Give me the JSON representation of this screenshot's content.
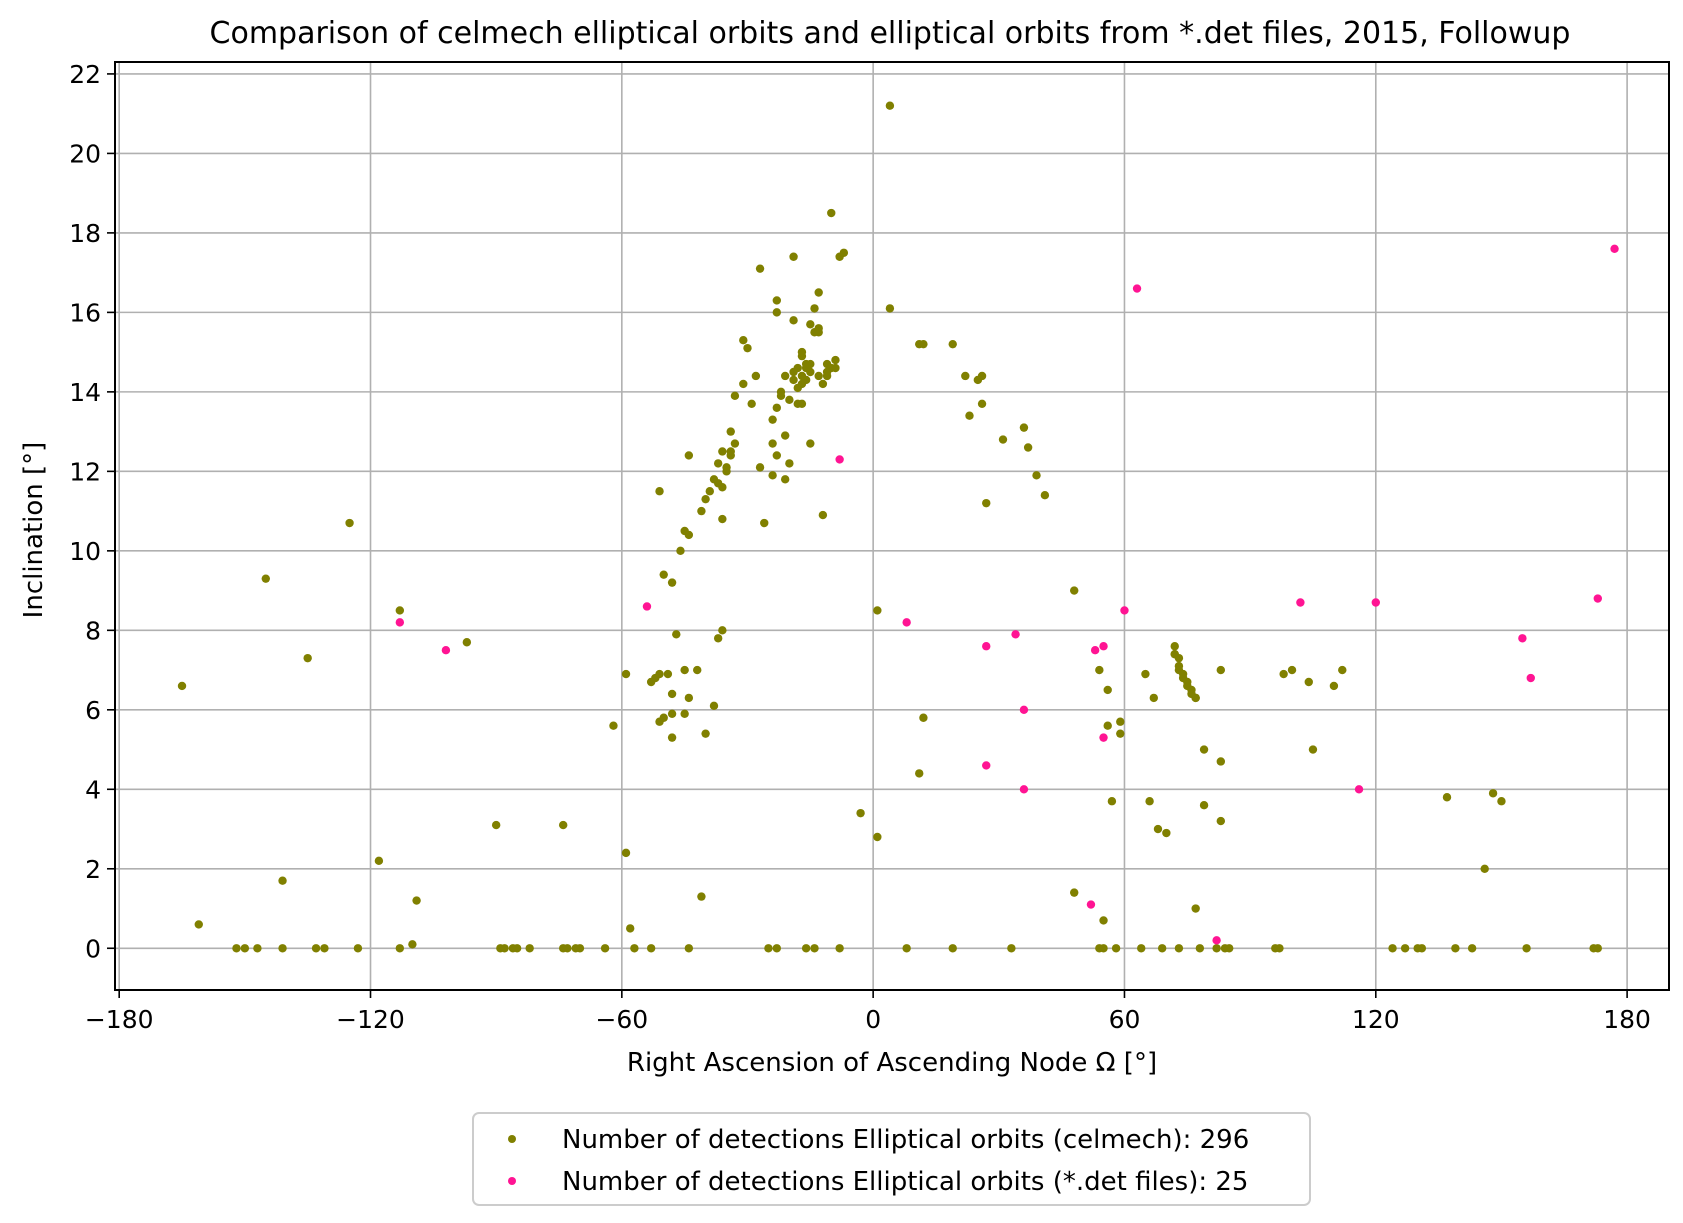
{
  "chart_data": {
    "type": "scatter",
    "title": "Comparison of celmech elliptical orbits and elliptical orbits from *.det files, 2015, Followup",
    "xlabel": "Right Ascension of Ascending Node Ω [°]",
    "ylabel": "Inclination [°]",
    "xlim": [
      -181,
      190
    ],
    "ylim": [
      -1.05,
      22.3
    ],
    "xticks": [
      -180,
      -120,
      -60,
      0,
      60,
      120,
      180
    ],
    "xtick_labels": [
      "−180",
      "−120",
      "−60",
      "0",
      "60",
      "120",
      "180"
    ],
    "yticks": [
      0,
      2,
      4,
      6,
      8,
      10,
      12,
      14,
      16,
      18,
      20,
      22
    ],
    "ytick_labels": [
      "0",
      "2",
      "4",
      "6",
      "8",
      "10",
      "12",
      "14",
      "16",
      "18",
      "20",
      "22"
    ],
    "grid": true,
    "legend_position": "below-center",
    "series": [
      {
        "name": "Number of detections Elliptical orbits (celmech): 296",
        "color": "#808000",
        "points": [
          [
            -165,
            6.6
          ],
          [
            -161,
            0.6
          ],
          [
            -152,
            0.0
          ],
          [
            -150,
            0.0
          ],
          [
            -147,
            0.0
          ],
          [
            -145,
            9.3
          ],
          [
            -141,
            1.7
          ],
          [
            -141,
            0.0
          ],
          [
            -135,
            7.3
          ],
          [
            -133,
            0.0
          ],
          [
            -131,
            0.0
          ],
          [
            -125,
            10.7
          ],
          [
            -123,
            0.0
          ],
          [
            -118,
            2.2
          ],
          [
            -113,
            8.5
          ],
          [
            -113,
            0.0
          ],
          [
            -110,
            0.1
          ],
          [
            -109,
            1.2
          ],
          [
            -97,
            7.7
          ],
          [
            -90,
            3.1
          ],
          [
            -89,
            0.0
          ],
          [
            -88,
            0.0
          ],
          [
            -86,
            0.0
          ],
          [
            -85,
            0.0
          ],
          [
            -82,
            0.0
          ],
          [
            -74,
            3.1
          ],
          [
            -74,
            0.0
          ],
          [
            -73,
            0.0
          ],
          [
            -71,
            0.0
          ],
          [
            -70,
            0.0
          ],
          [
            -64,
            0.0
          ],
          [
            -62,
            5.6
          ],
          [
            -59,
            6.9
          ],
          [
            -59,
            2.4
          ],
          [
            -58,
            0.5
          ],
          [
            -57,
            0.0
          ],
          [
            -53,
            0.0
          ],
          [
            -53,
            6.7
          ],
          [
            -52,
            6.8
          ],
          [
            -51,
            6.9
          ],
          [
            -51,
            5.7
          ],
          [
            -50,
            5.8
          ],
          [
            -49,
            6.9
          ],
          [
            -48,
            6.4
          ],
          [
            -48,
            5.9
          ],
          [
            -48,
            5.3
          ],
          [
            -47,
            7.9
          ],
          [
            -45,
            5.9
          ],
          [
            -45,
            7.0
          ],
          [
            -44,
            0.0
          ],
          [
            -44,
            6.3
          ],
          [
            -42,
            7.0
          ],
          [
            -41,
            1.3
          ],
          [
            -40,
            5.4
          ],
          [
            -38,
            6.1
          ],
          [
            -37,
            7.8
          ],
          [
            -36,
            8.0
          ],
          [
            -51,
            11.5
          ],
          [
            -50,
            9.4
          ],
          [
            -48,
            9.2
          ],
          [
            -46,
            10.0
          ],
          [
            -45,
            10.5
          ],
          [
            -44,
            10.4
          ],
          [
            -44,
            12.4
          ],
          [
            -41,
            11.0
          ],
          [
            -40,
            11.3
          ],
          [
            -39,
            11.5
          ],
          [
            -38,
            11.8
          ],
          [
            -37,
            11.7
          ],
          [
            -37,
            12.2
          ],
          [
            -36,
            12.5
          ],
          [
            -36,
            11.6
          ],
          [
            -36,
            10.8
          ],
          [
            -35,
            12.0
          ],
          [
            -35,
            12.1
          ],
          [
            -34,
            12.4
          ],
          [
            -34,
            12.5
          ],
          [
            -34,
            13.0
          ],
          [
            -33,
            12.7
          ],
          [
            -33,
            13.9
          ],
          [
            -31,
            14.2
          ],
          [
            -31,
            15.3
          ],
          [
            -30,
            15.1
          ],
          [
            -29,
            13.7
          ],
          [
            -28,
            14.4
          ],
          [
            -27,
            17.1
          ],
          [
            -27,
            12.1
          ],
          [
            -26,
            10.7
          ],
          [
            -24,
            11.9
          ],
          [
            -24,
            12.7
          ],
          [
            -24,
            13.3
          ],
          [
            -23,
            16.0
          ],
          [
            -23,
            12.4
          ],
          [
            -23,
            16.3
          ],
          [
            -23,
            13.6
          ],
          [
            -22,
            13.9
          ],
          [
            -22,
            14.0
          ],
          [
            -21,
            14.4
          ],
          [
            -21,
            11.8
          ],
          [
            -21,
            12.9
          ],
          [
            -20,
            13.8
          ],
          [
            -20,
            12.2
          ],
          [
            -19,
            14.3
          ],
          [
            -19,
            14.5
          ],
          [
            -19,
            15.8
          ],
          [
            -19,
            17.4
          ],
          [
            -18,
            13.7
          ],
          [
            -18,
            14.6
          ],
          [
            -18,
            14.1
          ],
          [
            -17,
            14.4
          ],
          [
            -17,
            14.9
          ],
          [
            -17,
            15.0
          ],
          [
            -17,
            13.7
          ],
          [
            -17,
            14.2
          ],
          [
            -16,
            14.7
          ],
          [
            -16,
            14.3
          ],
          [
            -16,
            14.6
          ],
          [
            -15,
            14.7
          ],
          [
            -15,
            15.7
          ],
          [
            -15,
            14.5
          ],
          [
            -15,
            12.7
          ],
          [
            -14,
            15.5
          ],
          [
            -14,
            16.1
          ],
          [
            -13,
            16.5
          ],
          [
            -13,
            15.6
          ],
          [
            -13,
            15.5
          ],
          [
            -13,
            14.4
          ],
          [
            -12,
            14.2
          ],
          [
            -12,
            10.9
          ],
          [
            -11,
            14.5
          ],
          [
            -11,
            14.4
          ],
          [
            -11,
            14.7
          ],
          [
            -10,
            14.6
          ],
          [
            -10,
            18.5
          ],
          [
            -9,
            14.8
          ],
          [
            -9,
            14.6
          ],
          [
            -8,
            17.4
          ],
          [
            -7,
            17.5
          ],
          [
            -25,
            0.0
          ],
          [
            -23,
            0.0
          ],
          [
            -16,
            0.0
          ],
          [
            -14,
            0.0
          ],
          [
            -8,
            0.0
          ],
          [
            -3,
            3.4
          ],
          [
            1,
            8.5
          ],
          [
            1,
            2.8
          ],
          [
            4,
            21.2
          ],
          [
            4,
            16.1
          ],
          [
            8,
            0.0
          ],
          [
            11,
            4.4
          ],
          [
            11,
            15.2
          ],
          [
            12,
            15.2
          ],
          [
            12,
            5.8
          ],
          [
            19,
            15.2
          ],
          [
            19,
            0.0
          ],
          [
            22,
            14.4
          ],
          [
            23,
            13.4
          ],
          [
            25,
            14.3
          ],
          [
            26,
            14.4
          ],
          [
            26,
            13.7
          ],
          [
            27,
            11.2
          ],
          [
            31,
            12.8
          ],
          [
            33,
            0.0
          ],
          [
            36,
            13.1
          ],
          [
            37,
            12.6
          ],
          [
            39,
            11.9
          ],
          [
            41,
            11.4
          ],
          [
            48,
            9.0
          ],
          [
            48,
            1.4
          ],
          [
            54,
            7.0
          ],
          [
            54,
            0.0
          ],
          [
            55,
            0.0
          ],
          [
            55,
            0.7
          ],
          [
            56,
            6.5
          ],
          [
            56,
            5.6
          ],
          [
            57,
            3.7
          ],
          [
            58,
            0.0
          ],
          [
            59,
            5.7
          ],
          [
            59,
            5.4
          ],
          [
            64,
            0.0
          ],
          [
            65,
            6.9
          ],
          [
            66,
            3.7
          ],
          [
            67,
            6.3
          ],
          [
            68,
            3.0
          ],
          [
            69,
            0.0
          ],
          [
            70,
            2.9
          ],
          [
            72,
            7.6
          ],
          [
            72,
            7.4
          ],
          [
            72,
            7.4
          ],
          [
            73,
            7.3
          ],
          [
            73,
            7.1
          ],
          [
            73,
            7.0
          ],
          [
            74,
            6.9
          ],
          [
            74,
            6.8
          ],
          [
            75,
            6.7
          ],
          [
            75,
            6.6
          ],
          [
            76,
            6.5
          ],
          [
            76,
            6.4
          ],
          [
            77,
            6.3
          ],
          [
            77,
            6.3
          ],
          [
            73,
            0.0
          ],
          [
            77,
            1.0
          ],
          [
            78,
            0.0
          ],
          [
            79,
            5.0
          ],
          [
            79,
            3.6
          ],
          [
            82,
            0.0
          ],
          [
            83,
            4.7
          ],
          [
            83,
            3.2
          ],
          [
            83,
            7.0
          ],
          [
            84,
            0.0
          ],
          [
            85,
            0.0
          ],
          [
            96,
            0.0
          ],
          [
            97,
            0.0
          ],
          [
            98,
            6.9
          ],
          [
            100,
            7.0
          ],
          [
            104,
            6.7
          ],
          [
            105,
            5.0
          ],
          [
            110,
            6.6
          ],
          [
            112,
            7.0
          ],
          [
            124,
            0.0
          ],
          [
            127,
            0.0
          ],
          [
            130,
            0.0
          ],
          [
            131,
            0.0
          ],
          [
            137,
            3.8
          ],
          [
            139,
            0.0
          ],
          [
            143,
            0.0
          ],
          [
            146,
            2.0
          ],
          [
            148,
            3.9
          ],
          [
            150,
            3.7
          ],
          [
            156,
            0.0
          ],
          [
            172,
            0.0
          ],
          [
            173,
            0.0
          ]
        ]
      },
      {
        "name": "Number of detections Elliptical orbits (*.det files): 25",
        "color": "#ff1493",
        "points": [
          [
            -113,
            8.2
          ],
          [
            -102,
            7.5
          ],
          [
            -54,
            8.6
          ],
          [
            -8,
            12.3
          ],
          [
            8,
            8.2
          ],
          [
            27,
            4.6
          ],
          [
            27,
            7.6
          ],
          [
            34,
            7.9
          ],
          [
            36,
            6.0
          ],
          [
            36,
            4.0
          ],
          [
            52,
            1.1
          ],
          [
            53,
            7.5
          ],
          [
            55,
            7.6
          ],
          [
            55,
            5.3
          ],
          [
            60,
            8.5
          ],
          [
            63,
            16.6
          ],
          [
            82,
            0.2
          ],
          [
            102,
            8.7
          ],
          [
            116,
            4.0
          ],
          [
            120,
            8.7
          ],
          [
            155,
            7.8
          ],
          [
            157,
            6.8
          ],
          [
            173,
            8.8
          ],
          [
            177,
            17.6
          ]
        ]
      }
    ]
  }
}
